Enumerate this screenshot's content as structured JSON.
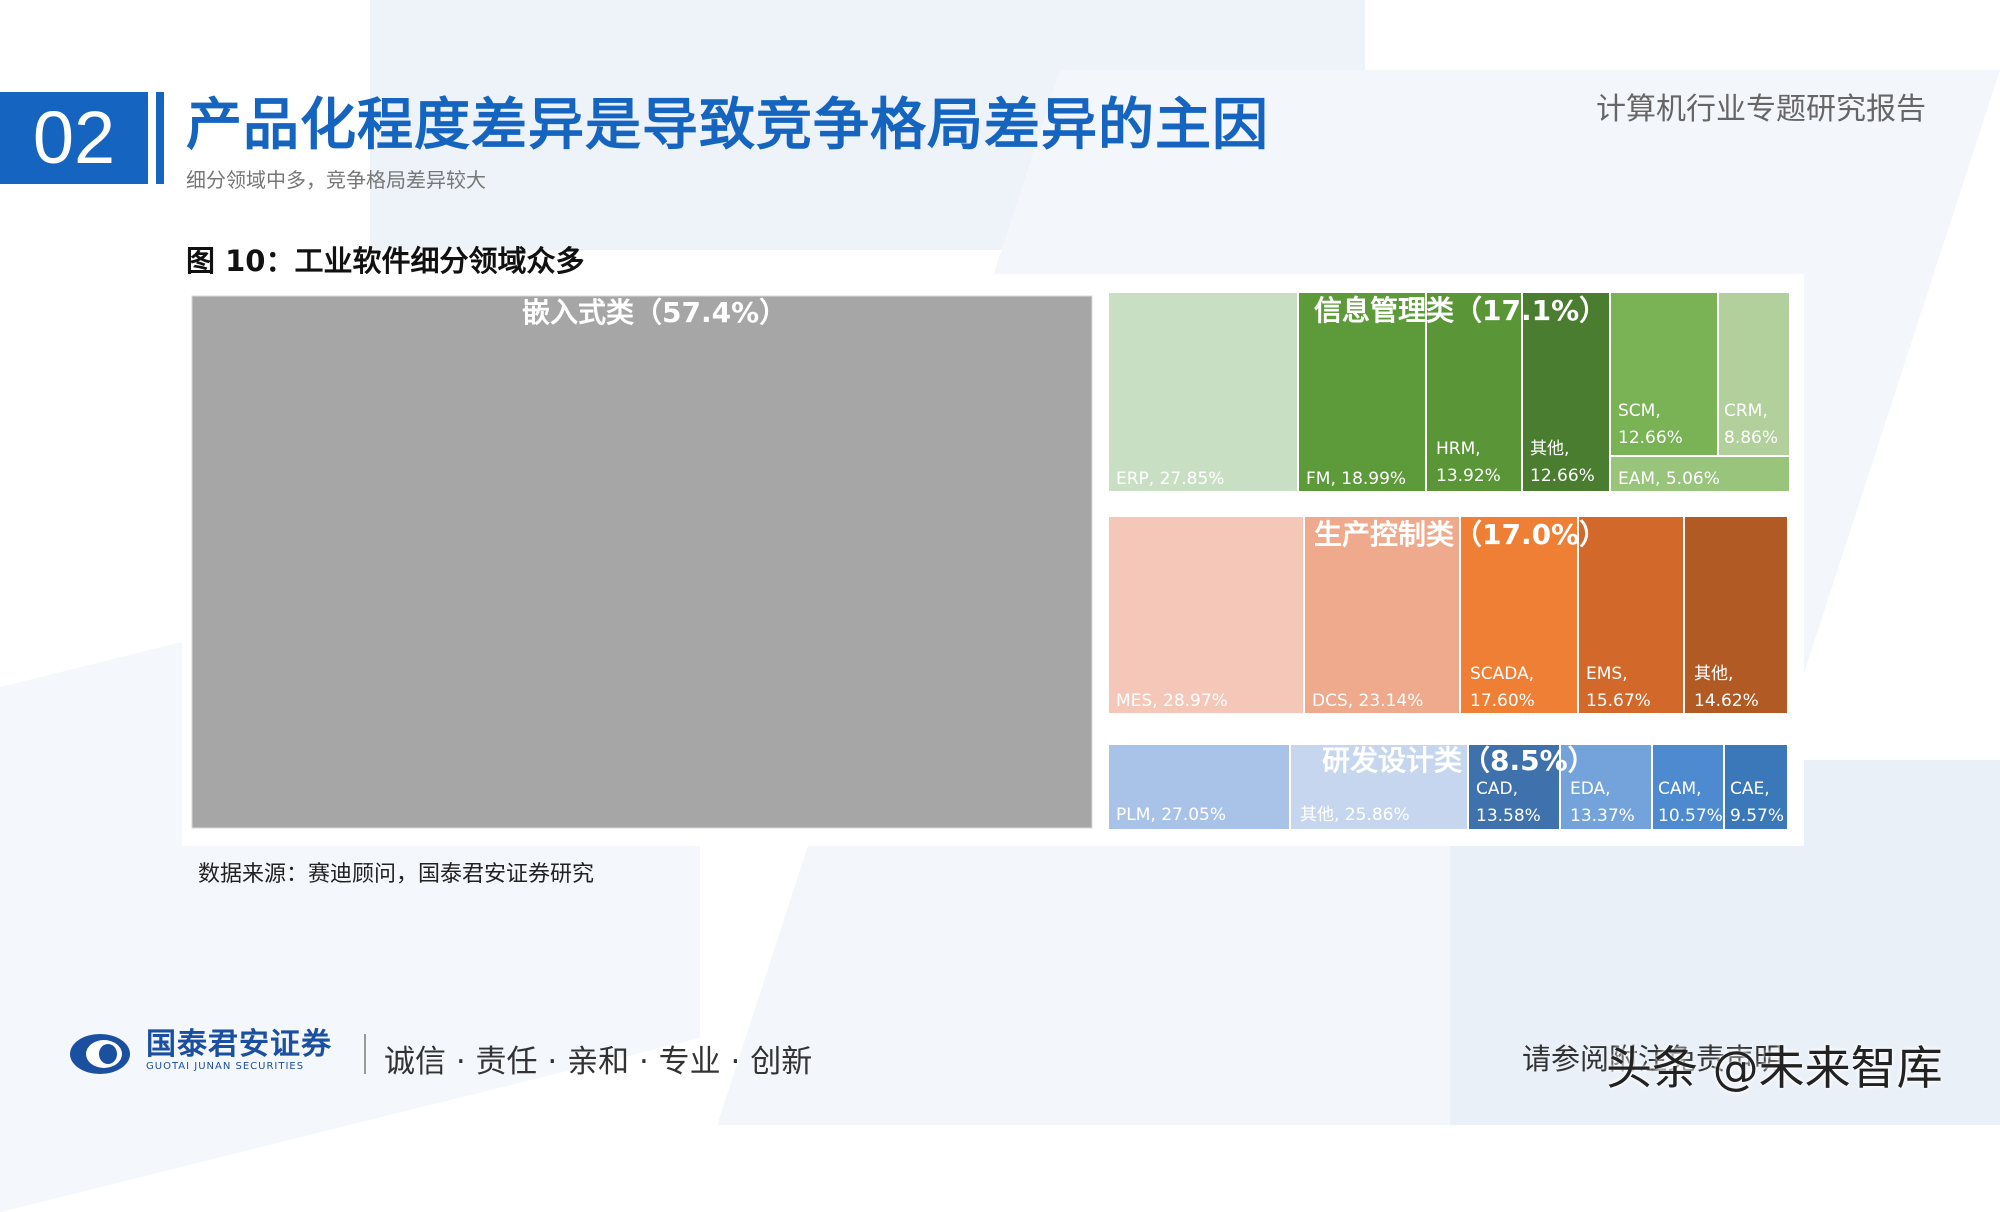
{
  "header": {
    "section_number": "02",
    "title": "产品化程度差异是导致竞争格局差异的主因",
    "subtitle": "细分领域中多，竞争格局差异较大",
    "report_tag": "计算机行业专题研究报告"
  },
  "figure": {
    "title": "图 10：工业软件细分领域众多",
    "source": "数据来源：赛迪顾问，国泰君安证券研究"
  },
  "chart_data": {
    "type": "treemap",
    "title": "图 10：工业软件细分领域众多",
    "groups": [
      {
        "key": "embedded",
        "name": "嵌入式类",
        "share_label": "（57.4%）",
        "share": 57.4,
        "color": "#a6a6a6",
        "children": []
      },
      {
        "key": "info",
        "name": "信息管理类",
        "share_label": "（17.1%）",
        "share": 17.1,
        "children": [
          {
            "name": "ERP",
            "value_label": "27.85%",
            "value": 27.85,
            "color": "#c9dfc3"
          },
          {
            "name": "FM",
            "value_label": "18.99%",
            "value": 18.99,
            "color": "#5c9a3a"
          },
          {
            "name": "HRM",
            "value_label": "13.92%",
            "value": 13.92,
            "color": "#5a9637"
          },
          {
            "name": "其他",
            "value_label": "12.66%",
            "value": 12.66,
            "color": "#4a7d2f"
          },
          {
            "name": "SCM",
            "value_label": "12.66%",
            "value": 12.66,
            "color": "#7ab356"
          },
          {
            "name": "CRM",
            "value_label": "8.86%",
            "value": 8.86,
            "color": "#b1d09c"
          },
          {
            "name": "EAM",
            "value_label": "5.06%",
            "value": 5.06,
            "color": "#98c47c"
          }
        ]
      },
      {
        "key": "prod",
        "name": "生产控制类",
        "share_label": "（17.0%）",
        "share": 17.0,
        "children": [
          {
            "name": "MES",
            "value_label": "28.97%",
            "value": 28.97,
            "color": "#f5c7b8"
          },
          {
            "name": "DCS",
            "value_label": "23.14%",
            "value": 23.14,
            "color": "#efa98c"
          },
          {
            "name": "SCADA",
            "value_label": "17.60%",
            "value": 17.6,
            "color": "#ef7f35"
          },
          {
            "name": "EMS",
            "value_label": "15.67%",
            "value": 15.67,
            "color": "#d2692b"
          },
          {
            "name": "其他",
            "value_label": "14.62%",
            "value": 14.62,
            "color": "#b15a24"
          }
        ]
      },
      {
        "key": "rd",
        "name": "研发设计类",
        "share_label": "（8.5%）",
        "share": 8.5,
        "children": [
          {
            "name": "PLM",
            "value_label": "27.05%",
            "value": 27.05,
            "color": "#a9c3e8"
          },
          {
            "name": "其他",
            "value_label": "25.86%",
            "value": 25.86,
            "color": "#c6d6ee"
          },
          {
            "name": "CAD",
            "value_label": "13.58%",
            "value": 13.58,
            "color": "#3f72ad"
          },
          {
            "name": "EDA",
            "value_label": "13.37%",
            "value": 13.37,
            "color": "#74a3dc"
          },
          {
            "name": "CAM",
            "value_label": "10.57%",
            "value": 10.57,
            "color": "#4d8ad0"
          },
          {
            "name": "CAE",
            "value_label": "9.57%",
            "value": 9.57,
            "color": "#3b78b9"
          }
        ]
      }
    ]
  },
  "footer": {
    "brand_cn": "国泰君安证券",
    "brand_en": "GUOTAI JUNAN SECURITIES",
    "slogan": "诚信 · 责任 · 亲和 · 专业 · 创新",
    "disclaimer": "请参阅附注免责声明",
    "watermark": "头条 @未来智库",
    "brand_color": "#1565c0"
  }
}
